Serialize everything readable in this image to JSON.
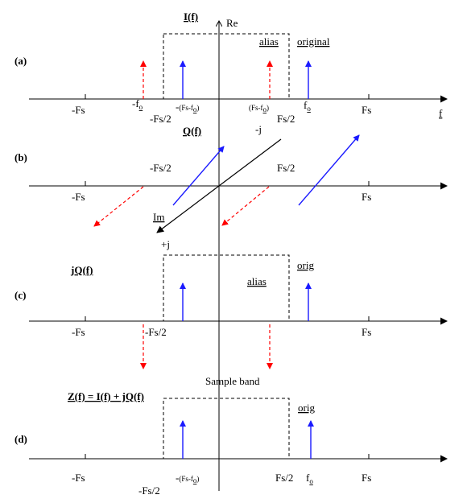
{
  "panels": {
    "a": {
      "tag": "(a)",
      "title": "I(f)",
      "alias": "alias",
      "original": "original"
    },
    "b": {
      "tag": "(b)",
      "title": "Q(f)"
    },
    "c": {
      "tag": "(c)",
      "title": "jQ(f)",
      "alias": "alias",
      "orig": "orig"
    },
    "d": {
      "tag": "(d)",
      "title": "Z(f) = I(f) + jQ(f)",
      "orig": "orig",
      "sample_band": "Sample band"
    }
  },
  "axis_labels": {
    "re": "Re",
    "f": "f",
    "im": "Im",
    "minus_j": "-j",
    "plus_j": "+j"
  },
  "tick_labels": {
    "neg_fs": "-Fs",
    "fs": "Fs",
    "neg_fs_half": "-Fs/2",
    "fs_half": "Fs/2",
    "neg_fo_main": "-f",
    "fo_main": "f",
    "fo_sub": "o",
    "neg_fs_minus_fo_prefix": "-",
    "fs_minus_fo_main": "(Fs-f",
    "fs_minus_fo_close": ")"
  },
  "colors": {
    "signal": "#1a1aff",
    "alias": "#ff0000",
    "axis": "#000000"
  }
}
